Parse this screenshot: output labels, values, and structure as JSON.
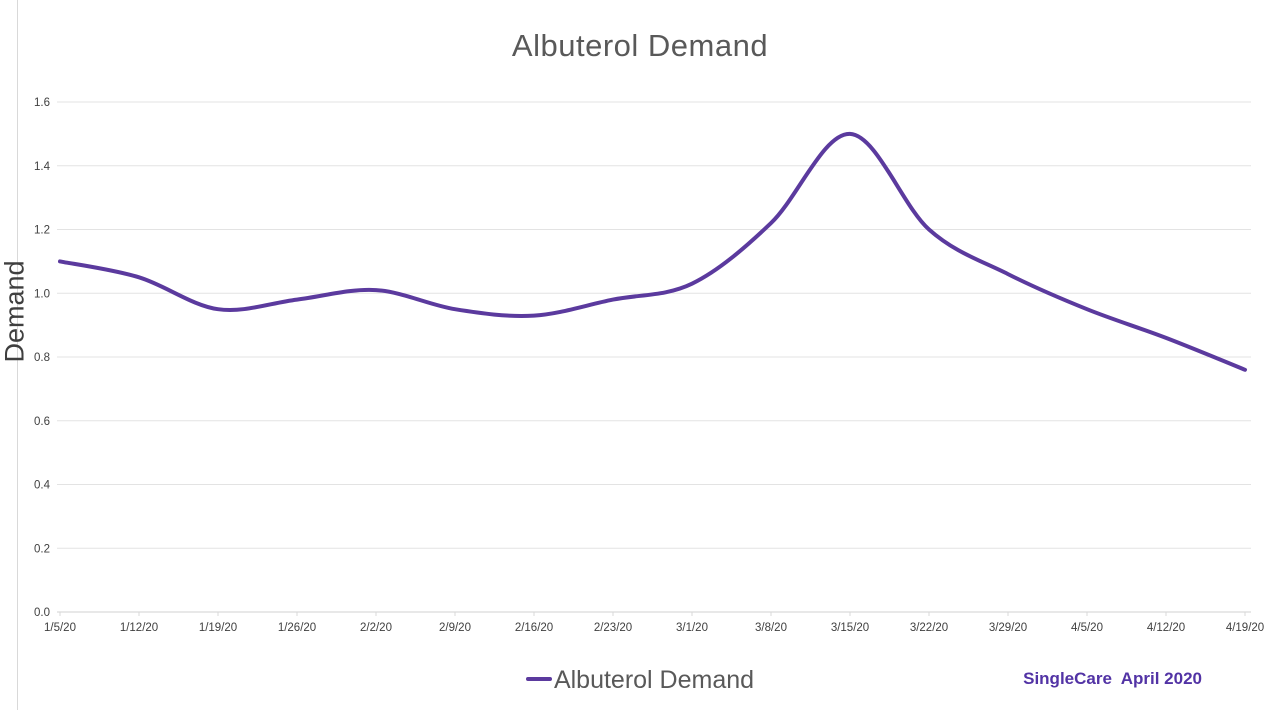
{
  "chart_title": "Albuterol Demand",
  "y_axis": {
    "title": "Demand"
  },
  "legend": {
    "label": "Albuterol Demand"
  },
  "footer": {
    "attribution": "SingleCare  April 2020"
  },
  "colors": {
    "line": "#5b3a9e",
    "attribution": "#5233a5",
    "title_text": "#595959",
    "tick_text": "#404040",
    "gridline": "#e3e3e3",
    "axis_line": "#d0d0d0",
    "tick_mark": "#d9d9d9"
  },
  "chart_data": {
    "type": "line",
    "title": "Albuterol Demand",
    "xlabel": "",
    "ylabel": "Demand",
    "categories": [
      "1/5/20",
      "1/12/20",
      "1/19/20",
      "1/26/20",
      "2/2/20",
      "2/9/20",
      "2/16/20",
      "2/23/20",
      "3/1/20",
      "3/8/20",
      "3/15/20",
      "3/22/20",
      "3/29/20",
      "4/5/20",
      "4/12/20",
      "4/19/20"
    ],
    "series": [
      {
        "name": "Albuterol Demand",
        "values": [
          1.1,
          1.05,
          0.95,
          0.98,
          1.01,
          0.95,
          0.93,
          0.98,
          1.03,
          1.22,
          1.5,
          1.2,
          1.06,
          0.95,
          0.86,
          0.76
        ]
      }
    ],
    "ylim": [
      0,
      1.6
    ],
    "ytick_step": 0.2,
    "grid": "horizontal",
    "smooth": true,
    "legend_position": "bottom"
  }
}
